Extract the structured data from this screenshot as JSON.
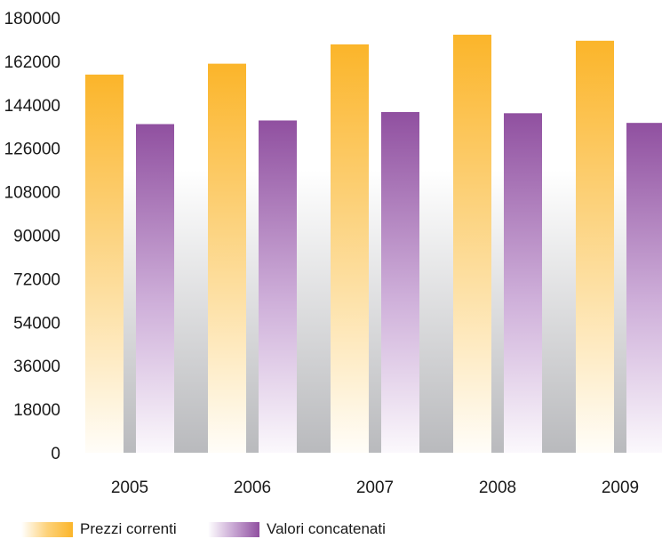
{
  "chart_data": {
    "type": "bar",
    "categories": [
      "2005",
      "2006",
      "2007",
      "2008",
      "2009"
    ],
    "series": [
      {
        "name": "Prezzi correnti",
        "values": [
          156500,
          161000,
          169000,
          173000,
          170500
        ],
        "color": "#fbb52a"
      },
      {
        "name": "Valori concatenati",
        "values": [
          136000,
          137500,
          141000,
          140500,
          136500
        ],
        "color": "#9050a0"
      }
    ],
    "yticks": [
      "0",
      "18000",
      "36000",
      "54000",
      "72000",
      "90000",
      "108000",
      "126000",
      "144000",
      "162000",
      "180000"
    ],
    "ylim": [
      0,
      180000
    ],
    "gridlines": false,
    "legend_position": "bottom"
  }
}
